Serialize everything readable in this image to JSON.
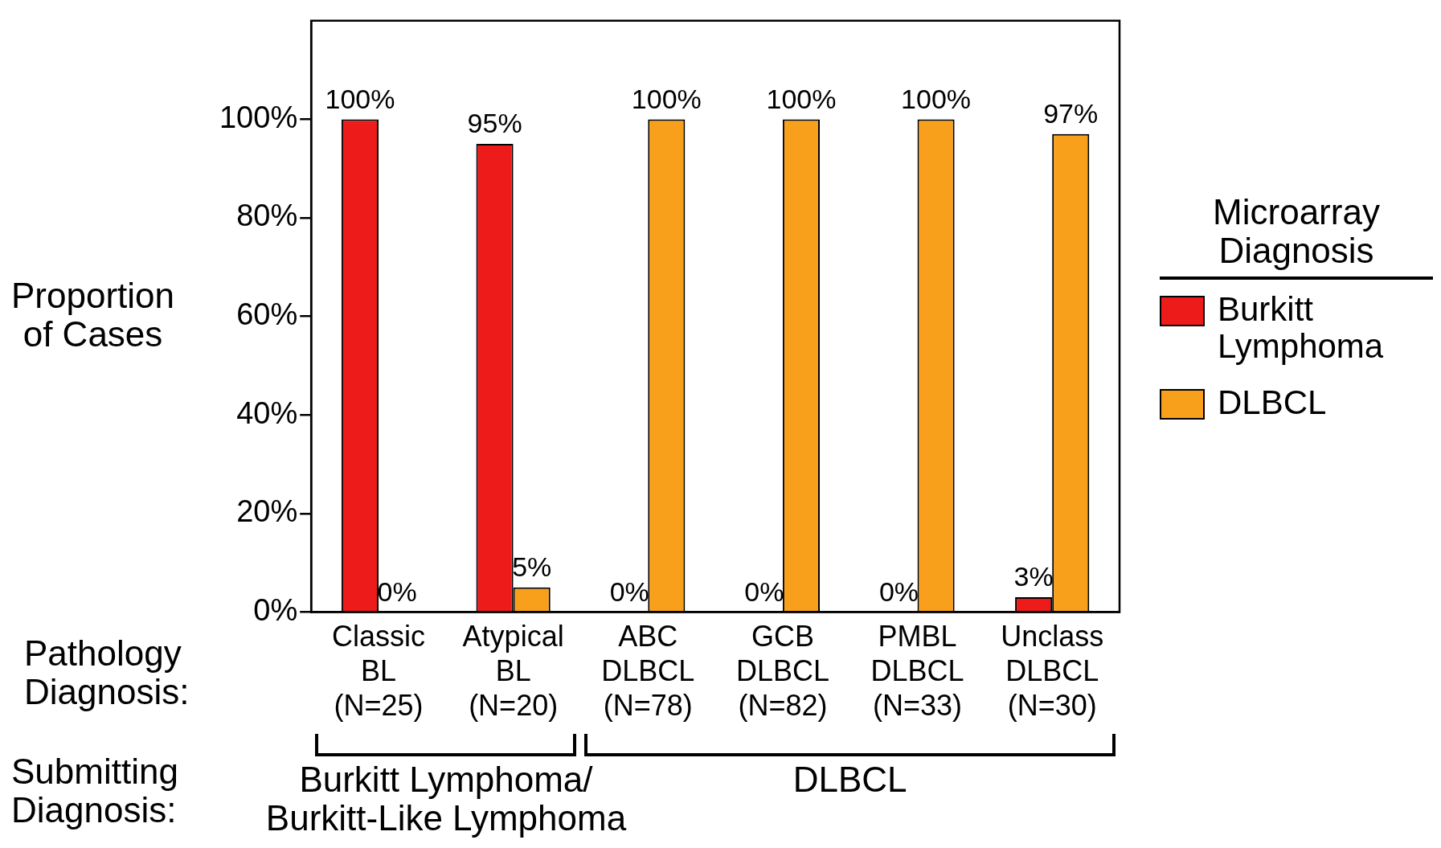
{
  "chart_data": {
    "type": "bar",
    "ylabel": "Proportion\nof Cases",
    "legend_title": "Microarray Diagnosis",
    "categories": [
      "Classic\nBL\n(N=25)",
      "Atypical\nBL\n(N=20)",
      "ABC\nDLBCL\n(N=78)",
      "GCB\nDLBCL\n(N=82)",
      "PMBL\nDLBCL\n(N=33)",
      "Unclass\nDLBCL\n(N=30)"
    ],
    "series": [
      {
        "name": "Burkitt Lymphoma",
        "color": "#ee1b1b",
        "values": [
          100,
          95,
          0,
          0,
          0,
          3
        ],
        "value_labels": [
          "100%",
          "95%",
          "0%",
          "0%",
          "0%",
          "3%"
        ]
      },
      {
        "name": "DLBCL",
        "color": "#f8a01b",
        "values": [
          0,
          5,
          100,
          100,
          100,
          97
        ],
        "value_labels": [
          "0%",
          "5%",
          "100%",
          "100%",
          "100%",
          "97%"
        ]
      }
    ],
    "ylim": [
      0,
      120
    ],
    "yticks": [
      {
        "value": 0,
        "label": "0%"
      },
      {
        "value": 20,
        "label": "20%"
      },
      {
        "value": 40,
        "label": "40%"
      },
      {
        "value": 60,
        "label": "60%"
      },
      {
        "value": 80,
        "label": "80%"
      },
      {
        "value": 100,
        "label": "100%"
      }
    ],
    "grid": false,
    "legend": "right",
    "annotations": [
      "Pathology\nDiagnosis:",
      "Submitting\nDiagnosis:",
      "Burkitt Lymphoma/\nBurkitt-Like Lymphoma",
      "DLBCL"
    ]
  }
}
